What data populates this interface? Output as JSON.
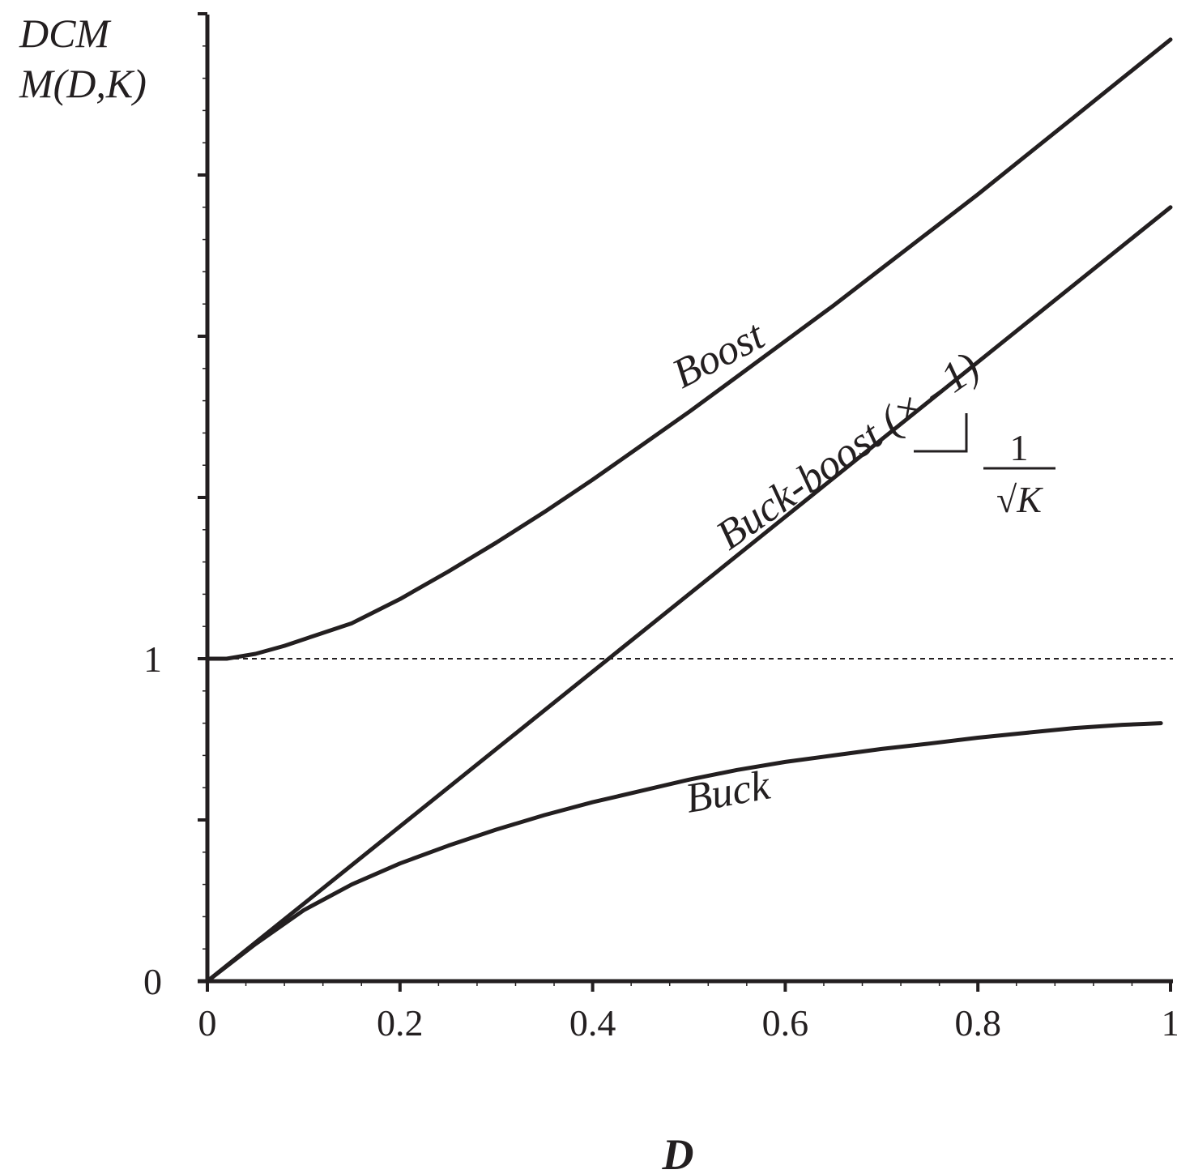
{
  "chart_data": {
    "type": "line",
    "title": "",
    "xlabel": "D",
    "ylabel": [
      "DCM",
      "M(D,K)"
    ],
    "xlim": [
      0,
      1
    ],
    "ylim": [
      0,
      3
    ],
    "x_ticks": [
      "0",
      "0.2",
      "0.4",
      "0.6",
      "0.8",
      "1"
    ],
    "y_ticks": [
      "0",
      "1"
    ],
    "reference_line": {
      "y": 1,
      "style": "dashed"
    },
    "series": [
      {
        "name": "Boost",
        "x": [
          0,
          0.02,
          0.05,
          0.08,
          0.11,
          0.15,
          0.2,
          0.25,
          0.3,
          0.35,
          0.4,
          0.45,
          0.5,
          0.55,
          0.6,
          0.65,
          0.7,
          0.75,
          0.8,
          0.85,
          0.9,
          0.95,
          1.0
        ],
        "y": [
          1.0,
          1.0,
          1.015,
          1.04,
          1.07,
          1.11,
          1.185,
          1.27,
          1.36,
          1.455,
          1.555,
          1.66,
          1.765,
          1.875,
          1.985,
          2.095,
          2.21,
          2.325,
          2.44,
          2.56,
          2.68,
          2.8,
          2.92
        ]
      },
      {
        "name": "Buck-boost (× –1)",
        "x": [
          0,
          1.0
        ],
        "y": [
          0,
          2.4
        ]
      },
      {
        "name": "Buck",
        "x": [
          0,
          0.05,
          0.1,
          0.15,
          0.2,
          0.25,
          0.3,
          0.35,
          0.4,
          0.45,
          0.5,
          0.55,
          0.6,
          0.65,
          0.7,
          0.75,
          0.8,
          0.85,
          0.9,
          0.95,
          0.99
        ],
        "y": [
          0,
          0.115,
          0.22,
          0.3,
          0.365,
          0.42,
          0.47,
          0.515,
          0.555,
          0.59,
          0.625,
          0.655,
          0.68,
          0.7,
          0.72,
          0.737,
          0.755,
          0.77,
          0.785,
          0.795,
          0.8
        ]
      }
    ],
    "annotations": {
      "slope_numerator": "1",
      "slope_denominator": "√K"
    },
    "grid": false,
    "legend": "none"
  }
}
